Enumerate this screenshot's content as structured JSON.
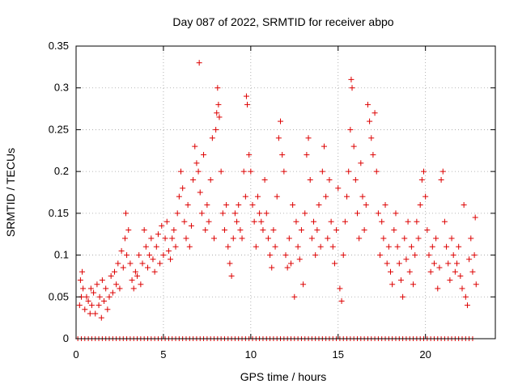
{
  "chart_data": {
    "type": "scatter",
    "title": "Day 087 of 2022, SRMTID for receiver abpo",
    "xlabel": "GPS time / hours",
    "ylabel": "SRMTID / TECUs",
    "xlim": [
      0,
      24
    ],
    "ylim": [
      0,
      0.35
    ],
    "xticks": [
      0,
      5,
      10,
      15,
      20
    ],
    "xtick_labels": [
      "0",
      "5",
      "10",
      "15",
      "20"
    ],
    "yticks": [
      0,
      0.05,
      0.1,
      0.15,
      0.2,
      0.25,
      0.3,
      0.35
    ],
    "ytick_labels": [
      "0",
      "0.05",
      "0.1",
      "0.15",
      "0.2",
      "0.25",
      "0.3",
      "0.35"
    ],
    "grid": true,
    "marker": "+",
    "color": "#dd0000",
    "series": [
      {
        "name": "SRMTID",
        "points": [
          [
            0.2,
            0.04
          ],
          [
            0.25,
            0.07
          ],
          [
            0.3,
            0.05
          ],
          [
            0.35,
            0.08
          ],
          [
            0.4,
            0.06
          ],
          [
            0.5,
            0.035
          ],
          [
            0.6,
            0.05
          ],
          [
            0.7,
            0.045
          ],
          [
            0.8,
            0.03
          ],
          [
            0.85,
            0.06
          ],
          [
            0.9,
            0.04
          ],
          [
            1.0,
            0.055
          ],
          [
            1.1,
            0.03
          ],
          [
            1.2,
            0.065
          ],
          [
            1.3,
            0.04
          ],
          [
            1.35,
            0.05
          ],
          [
            1.45,
            0.025
          ],
          [
            1.5,
            0.07
          ],
          [
            1.6,
            0.045
          ],
          [
            1.7,
            0.06
          ],
          [
            1.8,
            0.035
          ],
          [
            1.9,
            0.05
          ],
          [
            2.0,
            0.075
          ],
          [
            2.1,
            0.055
          ],
          [
            2.2,
            0.08
          ],
          [
            2.3,
            0.065
          ],
          [
            2.4,
            0.09
          ],
          [
            2.5,
            0.06
          ],
          [
            2.6,
            0.105
          ],
          [
            2.7,
            0.085
          ],
          [
            2.8,
            0.12
          ],
          [
            2.85,
            0.15
          ],
          [
            2.9,
            0.1
          ],
          [
            3.0,
            0.13
          ],
          [
            3.1,
            0.09
          ],
          [
            3.2,
            0.07
          ],
          [
            3.3,
            0.06
          ],
          [
            3.4,
            0.08
          ],
          [
            3.5,
            0.075
          ],
          [
            3.6,
            0.1
          ],
          [
            3.7,
            0.065
          ],
          [
            3.8,
            0.09
          ],
          [
            3.9,
            0.13
          ],
          [
            4.0,
            0.11
          ],
          [
            4.1,
            0.085
          ],
          [
            4.2,
            0.1
          ],
          [
            4.3,
            0.12
          ],
          [
            4.4,
            0.095
          ],
          [
            4.5,
            0.08
          ],
          [
            4.6,
            0.11
          ],
          [
            4.7,
            0.125
          ],
          [
            4.8,
            0.09
          ],
          [
            4.9,
            0.135
          ],
          [
            5.0,
            0.1
          ],
          [
            5.1,
            0.12
          ],
          [
            5.2,
            0.14
          ],
          [
            5.3,
            0.105
          ],
          [
            5.4,
            0.095
          ],
          [
            5.5,
            0.12
          ],
          [
            5.6,
            0.13
          ],
          [
            5.7,
            0.11
          ],
          [
            5.8,
            0.15
          ],
          [
            5.9,
            0.17
          ],
          [
            6.0,
            0.2
          ],
          [
            6.1,
            0.18
          ],
          [
            6.2,
            0.14
          ],
          [
            6.3,
            0.12
          ],
          [
            6.4,
            0.16
          ],
          [
            6.5,
            0.11
          ],
          [
            6.6,
            0.135
          ],
          [
            6.7,
            0.19
          ],
          [
            6.8,
            0.23
          ],
          [
            6.9,
            0.21
          ],
          [
            7.0,
            0.2
          ],
          [
            7.05,
            0.33
          ],
          [
            7.1,
            0.175
          ],
          [
            7.2,
            0.15
          ],
          [
            7.3,
            0.22
          ],
          [
            7.4,
            0.13
          ],
          [
            7.5,
            0.16
          ],
          [
            7.6,
            0.14
          ],
          [
            7.7,
            0.19
          ],
          [
            7.8,
            0.24
          ],
          [
            7.9,
            0.12
          ],
          [
            8.0,
            0.25
          ],
          [
            8.05,
            0.27
          ],
          [
            8.1,
            0.3
          ],
          [
            8.15,
            0.28
          ],
          [
            8.2,
            0.265
          ],
          [
            8.3,
            0.2
          ],
          [
            8.4,
            0.15
          ],
          [
            8.5,
            0.13
          ],
          [
            8.6,
            0.16
          ],
          [
            8.7,
            0.11
          ],
          [
            8.8,
            0.09
          ],
          [
            8.9,
            0.075
          ],
          [
            9.0,
            0.12
          ],
          [
            9.1,
            0.15
          ],
          [
            9.2,
            0.14
          ],
          [
            9.3,
            0.16
          ],
          [
            9.4,
            0.13
          ],
          [
            9.5,
            0.12
          ],
          [
            9.6,
            0.2
          ],
          [
            9.7,
            0.17
          ],
          [
            9.75,
            0.29
          ],
          [
            9.8,
            0.28
          ],
          [
            9.9,
            0.22
          ],
          [
            10.0,
            0.2
          ],
          [
            10.1,
            0.16
          ],
          [
            10.2,
            0.14
          ],
          [
            10.3,
            0.11
          ],
          [
            10.4,
            0.17
          ],
          [
            10.5,
            0.15
          ],
          [
            10.6,
            0.14
          ],
          [
            10.7,
            0.13
          ],
          [
            10.8,
            0.19
          ],
          [
            10.9,
            0.15
          ],
          [
            11.0,
            0.12
          ],
          [
            11.1,
            0.1
          ],
          [
            11.2,
            0.085
          ],
          [
            11.3,
            0.13
          ],
          [
            11.4,
            0.11
          ],
          [
            11.5,
            0.17
          ],
          [
            11.6,
            0.24
          ],
          [
            11.7,
            0.26
          ],
          [
            11.8,
            0.22
          ],
          [
            11.9,
            0.2
          ],
          [
            12.0,
            0.1
          ],
          [
            12.1,
            0.085
          ],
          [
            12.2,
            0.12
          ],
          [
            12.3,
            0.09
          ],
          [
            12.4,
            0.16
          ],
          [
            12.5,
            0.05
          ],
          [
            12.6,
            0.14
          ],
          [
            12.7,
            0.11
          ],
          [
            12.8,
            0.095
          ],
          [
            12.9,
            0.13
          ],
          [
            13.0,
            0.065
          ],
          [
            13.1,
            0.15
          ],
          [
            13.2,
            0.22
          ],
          [
            13.3,
            0.24
          ],
          [
            13.4,
            0.19
          ],
          [
            13.5,
            0.12
          ],
          [
            13.6,
            0.14
          ],
          [
            13.7,
            0.1
          ],
          [
            13.8,
            0.13
          ],
          [
            13.9,
            0.16
          ],
          [
            14.0,
            0.11
          ],
          [
            14.1,
            0.2
          ],
          [
            14.2,
            0.23
          ],
          [
            14.3,
            0.17
          ],
          [
            14.4,
            0.12
          ],
          [
            14.5,
            0.19
          ],
          [
            14.6,
            0.14
          ],
          [
            14.7,
            0.11
          ],
          [
            14.8,
            0.09
          ],
          [
            14.9,
            0.13
          ],
          [
            15.0,
            0.18
          ],
          [
            15.1,
            0.06
          ],
          [
            15.2,
            0.045
          ],
          [
            15.3,
            0.1
          ],
          [
            15.4,
            0.14
          ],
          [
            15.5,
            0.17
          ],
          [
            15.6,
            0.2
          ],
          [
            15.7,
            0.25
          ],
          [
            15.75,
            0.31
          ],
          [
            15.8,
            0.3
          ],
          [
            15.9,
            0.23
          ],
          [
            16.0,
            0.19
          ],
          [
            16.1,
            0.15
          ],
          [
            16.2,
            0.12
          ],
          [
            16.3,
            0.21
          ],
          [
            16.4,
            0.17
          ],
          [
            16.5,
            0.13
          ],
          [
            16.6,
            0.16
          ],
          [
            16.7,
            0.28
          ],
          [
            16.8,
            0.26
          ],
          [
            16.9,
            0.24
          ],
          [
            17.0,
            0.22
          ],
          [
            17.1,
            0.27
          ],
          [
            17.2,
            0.2
          ],
          [
            17.3,
            0.15
          ],
          [
            17.4,
            0.1
          ],
          [
            17.5,
            0.14
          ],
          [
            17.6,
            0.12
          ],
          [
            17.7,
            0.16
          ],
          [
            17.8,
            0.09
          ],
          [
            17.9,
            0.11
          ],
          [
            18.0,
            0.08
          ],
          [
            18.1,
            0.065
          ],
          [
            18.2,
            0.13
          ],
          [
            18.3,
            0.15
          ],
          [
            18.4,
            0.11
          ],
          [
            18.5,
            0.09
          ],
          [
            18.6,
            0.07
          ],
          [
            18.7,
            0.05
          ],
          [
            18.8,
            0.12
          ],
          [
            18.9,
            0.095
          ],
          [
            19.0,
            0.14
          ],
          [
            19.1,
            0.08
          ],
          [
            19.2,
            0.11
          ],
          [
            19.3,
            0.065
          ],
          [
            19.4,
            0.1
          ],
          [
            19.5,
            0.14
          ],
          [
            19.6,
            0.12
          ],
          [
            19.7,
            0.16
          ],
          [
            19.8,
            0.19
          ],
          [
            19.9,
            0.2
          ],
          [
            20.0,
            0.17
          ],
          [
            20.1,
            0.13
          ],
          [
            20.2,
            0.1
          ],
          [
            20.3,
            0.08
          ],
          [
            20.4,
            0.11
          ],
          [
            20.5,
            0.09
          ],
          [
            20.6,
            0.12
          ],
          [
            20.7,
            0.06
          ],
          [
            20.8,
            0.085
          ],
          [
            20.9,
            0.19
          ],
          [
            21.0,
            0.2
          ],
          [
            21.1,
            0.14
          ],
          [
            21.2,
            0.11
          ],
          [
            21.3,
            0.09
          ],
          [
            21.4,
            0.07
          ],
          [
            21.5,
            0.12
          ],
          [
            21.6,
            0.1
          ],
          [
            21.7,
            0.08
          ],
          [
            21.8,
            0.09
          ],
          [
            21.9,
            0.11
          ],
          [
            22.0,
            0.075
          ],
          [
            22.1,
            0.06
          ],
          [
            22.2,
            0.16
          ],
          [
            22.3,
            0.05
          ],
          [
            22.4,
            0.04
          ],
          [
            22.5,
            0.095
          ],
          [
            22.6,
            0.12
          ],
          [
            22.7,
            0.08
          ],
          [
            22.8,
            0.1
          ],
          [
            22.85,
            0.145
          ],
          [
            22.9,
            0.065
          ]
        ]
      }
    ],
    "zero_x": [
      0.1,
      0.3,
      0.5,
      0.7,
      0.9,
      1.1,
      1.3,
      1.5,
      1.7,
      1.9,
      2.1,
      2.3,
      2.5,
      2.7,
      2.9,
      3.1,
      3.3,
      3.5,
      3.7,
      3.9,
      4.1,
      4.3,
      4.5,
      4.7,
      4.9,
      5.1,
      5.3,
      5.5,
      5.7,
      5.9,
      6.1,
      6.3,
      6.5,
      6.7,
      6.9,
      7.1,
      7.3,
      7.5,
      7.7,
      7.9,
      8.1,
      8.3,
      8.5,
      8.7,
      8.9,
      9.1,
      9.3,
      9.5,
      9.7,
      9.9,
      10.1,
      10.3,
      10.5,
      10.7,
      10.9,
      11.1,
      11.3,
      11.5,
      11.7,
      11.9,
      12.1,
      12.3,
      12.5,
      12.7,
      12.9,
      13.1,
      13.3,
      13.5,
      13.7,
      13.9,
      14.1,
      14.3,
      14.5,
      14.7,
      14.9,
      15.1,
      15.3,
      15.5,
      15.7,
      15.9,
      16.1,
      16.3,
      16.5,
      16.7,
      16.9,
      17.1,
      17.3,
      17.5,
      17.7,
      17.9,
      18.1,
      18.3,
      18.5,
      18.7,
      18.9,
      19.1,
      19.3,
      19.5,
      19.7,
      19.9,
      20.1,
      20.3,
      20.5,
      20.7,
      20.9,
      21.1,
      21.3,
      21.5,
      21.7,
      21.9,
      22.1,
      22.3,
      22.5,
      22.7
    ]
  }
}
